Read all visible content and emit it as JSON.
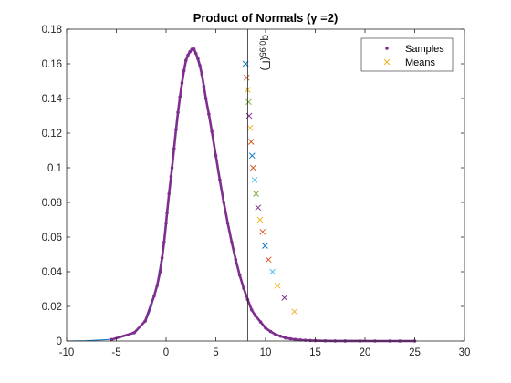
{
  "chart_data": {
    "type": "scatter",
    "title": "Product of Normals (γ =2)",
    "xlim": [
      -10,
      30
    ],
    "ylim": [
      0,
      0.18
    ],
    "xticks": [
      -10,
      -5,
      0,
      5,
      10,
      15,
      20,
      25,
      30
    ],
    "xtick_labels": [
      "-10",
      "-5",
      "0",
      "5",
      "10",
      "15",
      "20",
      "25",
      "30"
    ],
    "yticks": [
      0,
      0.02,
      0.04,
      0.06,
      0.08,
      0.1,
      0.12,
      0.14,
      0.16,
      0.18
    ],
    "ytick_labels": [
      "0",
      "0.02",
      "0.04",
      "0.06",
      "0.08",
      "0.1",
      "0.12",
      "0.14",
      "0.16",
      "0.18"
    ],
    "grid": false,
    "legend_position": "top-right",
    "legend": [
      "Samples",
      "Means"
    ],
    "density_curve": {
      "color": "#0072BD",
      "x": [
        -10,
        -8,
        -6,
        -5,
        -4,
        -3,
        -2,
        -1.5,
        -1,
        -0.5,
        0,
        0.5,
        1,
        1.5,
        2,
        2.5,
        2.8,
        3,
        3.5,
        4,
        4.5,
        5,
        5.5,
        6,
        6.5,
        7,
        7.5,
        8,
        8.5,
        9,
        9.5,
        10,
        11,
        12,
        13,
        14,
        15,
        17,
        20,
        25
      ],
      "y": [
        0,
        0.0002,
        0.0008,
        0.0015,
        0.003,
        0.006,
        0.012,
        0.019,
        0.03,
        0.047,
        0.068,
        0.095,
        0.122,
        0.147,
        0.162,
        0.168,
        0.1685,
        0.166,
        0.155,
        0.14,
        0.124,
        0.107,
        0.09,
        0.074,
        0.06,
        0.047,
        0.036,
        0.027,
        0.02,
        0.0145,
        0.0105,
        0.0075,
        0.0038,
        0.0018,
        0.0009,
        0.00045,
        0.00022,
        6e-05,
        1e-05,
        0
      ]
    },
    "series": [
      {
        "name": "Samples",
        "marker": "dot",
        "color": "#7E2F8E",
        "x": [
          -5.5,
          -3.2,
          -2.1,
          -1.2,
          -0.9,
          -0.6,
          -0.4,
          -0.2,
          0,
          0.1,
          0.3,
          0.5,
          0.6,
          0.8,
          1,
          1.2,
          1.4,
          1.6,
          1.8,
          2,
          2.2,
          2.4,
          2.6,
          2.8,
          3,
          3.2,
          3.4,
          3.6,
          3.8,
          4,
          4.3,
          4.6,
          5,
          5.4,
          5.8,
          6.2,
          6.6,
          7,
          7.4,
          7.8,
          8.2,
          8.6,
          9,
          9.5,
          10,
          10.5,
          11,
          11.5,
          12,
          12.5,
          13,
          13.5,
          14,
          14.5,
          15,
          16,
          17,
          18,
          19.5,
          21,
          22.5,
          23.5,
          25
        ],
        "y": [
          0.0008,
          0.0048,
          0.0115,
          0.026,
          0.032,
          0.04,
          0.048,
          0.057,
          0.068,
          0.074,
          0.085,
          0.095,
          0.1,
          0.111,
          0.122,
          0.132,
          0.141,
          0.149,
          0.156,
          0.162,
          0.165,
          0.167,
          0.1684,
          0.1685,
          0.166,
          0.163,
          0.159,
          0.154,
          0.147,
          0.14,
          0.131,
          0.121,
          0.107,
          0.093,
          0.08,
          0.068,
          0.057,
          0.047,
          0.038,
          0.0305,
          0.024,
          0.018,
          0.0145,
          0.011,
          0.0075,
          0.0055,
          0.0038,
          0.0028,
          0.0018,
          0.0013,
          0.0009,
          0.0006,
          0.00045,
          0.0003,
          0.00022,
          0.00012,
          6e-05,
          3e-05,
          1e-05,
          5e-06,
          0,
          0,
          0
        ]
      },
      {
        "name": "Means",
        "marker": "x",
        "color": "#EDB120",
        "x": [
          8.0,
          8.1,
          8.2,
          8.3,
          8.35,
          8.45,
          8.55,
          8.65,
          8.75,
          8.9,
          9.05,
          9.25,
          9.45,
          9.7,
          9.95,
          10.3,
          10.7,
          11.2,
          11.9,
          12.9
        ],
        "y": [
          0.16,
          0.152,
          0.145,
          0.138,
          0.13,
          0.123,
          0.115,
          0.107,
          0.1,
          0.093,
          0.085,
          0.077,
          0.07,
          0.063,
          0.055,
          0.047,
          0.04,
          0.032,
          0.025,
          0.017
        ],
        "colors": [
          "#0072BD",
          "#D95319",
          "#EDB120",
          "#77AC30",
          "#7E2F8E",
          "#EDB120",
          "#D95319",
          "#0072BD",
          "#D95319",
          "#4DBEEE",
          "#77AC30",
          "#7E2F8E",
          "#EDB120",
          "#D95319",
          "#0072BD",
          "#D95319",
          "#4DBEEE",
          "#EDB120",
          "#7E2F8E",
          "#EDB120"
        ]
      }
    ],
    "vertical_line": {
      "x": 8.2,
      "label_main": "q",
      "label_sub": "0.95",
      "label_tail": "(F)"
    }
  }
}
